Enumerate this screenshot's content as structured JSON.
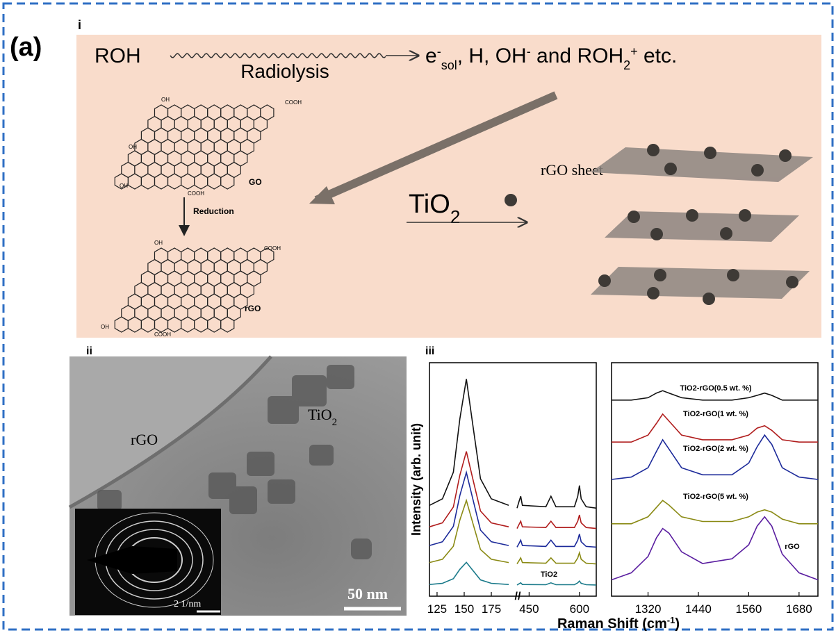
{
  "panel_label": "(a)",
  "schematic": {
    "label": "i",
    "reactant": "ROH",
    "process": "Radiolysis",
    "products": [
      "e",
      "-",
      "sol",
      ", H, OH",
      "-",
      " and ROH",
      "2",
      "+",
      " etc."
    ],
    "hydroxyl": "OH",
    "carboxyl": "COOH",
    "go": "GO",
    "step": "Reduction",
    "rgo": "rGO",
    "additive": [
      "TiO",
      "2"
    ],
    "sheet": "rGO sheet"
  },
  "tem": {
    "label": "ii",
    "rgo": "rGO",
    "particle": [
      "TiO",
      "2"
    ],
    "scale": "50 nm",
    "inset_scale": "2 1/nm"
  },
  "raman": {
    "label": "iii",
    "x_label": [
      "Raman Shift (cm",
      "-1",
      ")"
    ]
  },
  "chart_data": [
    {
      "type": "line",
      "y_label": "Intensity (arb. unit)",
      "x": [
        118,
        130,
        140,
        146,
        152,
        158,
        165,
        175,
        191,
        null,
        414,
        420,
        425,
        430,
        500,
        515,
        530,
        585,
        595,
        600,
        605,
        620,
        650
      ],
      "xlim": [
        118,
        650
      ],
      "x_break": [
        191,
        414
      ],
      "xticks": [
        125,
        150,
        175,
        450,
        600
      ],
      "ylim": [
        0,
        100
      ],
      "series": [
        {
          "color": "#111111",
          "values": [
            38.9,
            41.7,
            53.1,
            75.9,
            93,
            73.1,
            50.3,
            41.7,
            38.9,
            null,
            37.7,
            40.6,
            42.8,
            38.9,
            38.3,
            42.8,
            38.3,
            38.3,
            42.8,
            47.4,
            41.7,
            38.3,
            37.7
          ]
        },
        {
          "color": "#b01c1c",
          "values": [
            29.7,
            31.4,
            38.2,
            51.8,
            62,
            50.1,
            36.5,
            31.4,
            29.7,
            null,
            29,
            30.7,
            32.1,
            29.7,
            29.4,
            32.1,
            29.4,
            29.4,
            32.1,
            34.8,
            31.4,
            29.4,
            29
          ]
        },
        {
          "color": "#1c2a9a",
          "values": [
            21.7,
            23.3,
            29.9,
            43.1,
            53,
            41.5,
            28.3,
            23.3,
            21.7,
            null,
            21,
            22.6,
            24,
            21.7,
            21.3,
            24,
            21.3,
            21.3,
            24,
            26.6,
            23.3,
            21.3,
            21
          ]
        },
        {
          "color": "#8a8a14",
          "values": [
            14.4,
            15.8,
            21.4,
            32.6,
            41,
            31.2,
            20,
            15.8,
            14.4,
            null,
            13.8,
            15.2,
            16.4,
            14.4,
            14.1,
            16.4,
            14.1,
            14.1,
            16.4,
            18.6,
            15.8,
            14.1,
            13.8
          ]
        },
        {
          "name": "TiO2",
          "color": "#1a7a8a",
          "values": [
            5,
            5.5,
            7.5,
            11.5,
            14.5,
            11,
            7,
            5.5,
            5,
            null,
            4.8,
            5.3,
            5.7,
            5,
            4.9,
            5.7,
            4.9,
            4.9,
            5.7,
            6.5,
            5.5,
            4.9,
            4.8
          ]
        }
      ]
    },
    {
      "type": "line",
      "x": [
        1233,
        1280,
        1320,
        1340,
        1355,
        1370,
        1400,
        1450,
        1520,
        1560,
        1580,
        1598,
        1615,
        1640,
        1680,
        1725
      ],
      "xlim": [
        1233,
        1725
      ],
      "xticks": [
        1320,
        1440,
        1560,
        1680
      ],
      "ylim": [
        0,
        100
      ],
      "series": [
        {
          "name": "TiO2-rGO(0.5 wt. %)",
          "color": "#111111",
          "values": [
            84,
            84,
            85,
            87,
            88,
            87,
            85,
            84,
            84,
            85,
            86,
            87,
            86,
            84,
            84,
            84
          ]
        },
        {
          "name": "TiO2-rGO(1 wt. %)",
          "color": "#b01c1c",
          "values": [
            66,
            66,
            69,
            74,
            78,
            75,
            69,
            67,
            67,
            69,
            72,
            73,
            71,
            67,
            66,
            66
          ]
        },
        {
          "name": "TiO2-rGO(2 wt. %)",
          "color": "#1c2a9a",
          "values": [
            50,
            51,
            55,
            62,
            67,
            63,
            55,
            52,
            52,
            57,
            64,
            69,
            65,
            55,
            51,
            50
          ]
        },
        {
          "name": "TiO2-rGO(5 wt. %)",
          "color": "#8a8a14",
          "values": [
            31,
            31,
            34,
            38,
            41,
            39,
            34,
            32,
            32,
            34,
            36,
            37,
            36,
            33,
            31,
            31
          ]
        },
        {
          "name": "rGO",
          "color": "#5a1ea0",
          "values": [
            7,
            10,
            17,
            25,
            29,
            27,
            19,
            14,
            16,
            22,
            30,
            34,
            30,
            18,
            10,
            7
          ]
        }
      ]
    }
  ]
}
